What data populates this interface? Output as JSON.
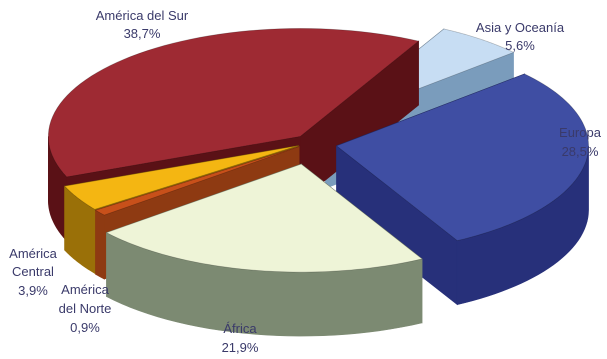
{
  "chart_data": {
    "type": "pie",
    "style": "3d-exploded",
    "title": "",
    "slices": [
      {
        "label": "Asia y Oceanía",
        "value": 5.6,
        "value_label": "5,6%",
        "color": "#c7ddf3",
        "side_color": "#7a9cbc"
      },
      {
        "label": "Europa",
        "value": 28.5,
        "value_label": "28,5%",
        "color": "#3f4ea3",
        "side_color": "#27307a"
      },
      {
        "label": "África",
        "value": 21.9,
        "value_label": "21,9%",
        "color": "#eef4d7",
        "side_color": "#7c8a72"
      },
      {
        "label": "América del Norte",
        "label_lines": [
          "América",
          "del Norte"
        ],
        "value": 0.9,
        "value_label": "0,9%",
        "color": "#c8501a",
        "side_color": "#8e3a12"
      },
      {
        "label": "América Central",
        "label_lines": [
          "América",
          "Central"
        ],
        "value": 3.9,
        "value_label": "3,9%",
        "color": "#f4b612",
        "side_color": "#9a7008"
      },
      {
        "label": "América del Sur",
        "value": 38.7,
        "value_label": "38,7%",
        "color": "#9e2a33",
        "side_color": "#5a1116"
      }
    ]
  }
}
